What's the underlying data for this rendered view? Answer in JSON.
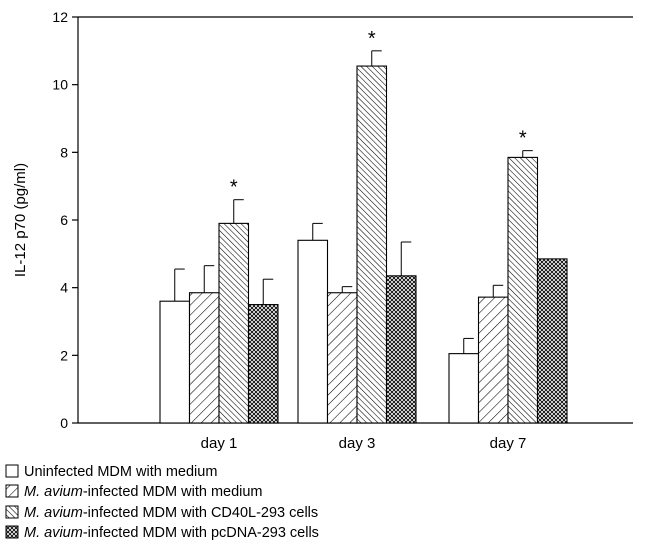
{
  "chart_data": {
    "type": "bar",
    "ylabel": "IL-12 p70 (pg/ml)",
    "ylim": [
      0,
      12
    ],
    "yticks": [
      0,
      2,
      4,
      6,
      8,
      10,
      12
    ],
    "categories": [
      "day 1",
      "day 3",
      "day 7"
    ],
    "series": [
      {
        "name": "Uninfected MDM with medium",
        "name_italic": "",
        "name_rest": "Uninfected MDM with medium",
        "pattern": "open",
        "values": [
          3.6,
          5.4,
          2.05
        ],
        "errors": [
          0.95,
          0.5,
          0.45
        ]
      },
      {
        "name": "M. avium-infected MDM with medium",
        "name_italic": "M. avium",
        "name_rest": "-infected MDM with medium",
        "pattern": "sparse-diagonal",
        "values": [
          3.85,
          3.85,
          3.72
        ],
        "errors": [
          0.8,
          0.18,
          0.35
        ]
      },
      {
        "name": "M. avium-infected MDM with CD40L-293 cells",
        "name_italic": "M. avium",
        "name_rest": "-infected MDM with CD40L-293 cells",
        "pattern": "dense-diagonal",
        "values": [
          5.9,
          10.55,
          7.85
        ],
        "errors": [
          0.7,
          0.45,
          0.2
        ]
      },
      {
        "name": "M. avium-infected MDM with pcDNA-293 cells",
        "name_italic": "M. avium",
        "name_rest": "-infected MDM with pcDNA-293 cells",
        "pattern": "crosshatch",
        "values": [
          3.5,
          4.35,
          4.85
        ],
        "errors": [
          0.75,
          1.0,
          0
        ]
      }
    ],
    "annotations": [
      {
        "text": "*",
        "category": "day 1",
        "series_index": 2
      },
      {
        "text": "*",
        "category": "day 3",
        "series_index": 2
      },
      {
        "text": "*",
        "category": "day 7",
        "series_index": 2
      }
    ],
    "grid": false,
    "legend_position": "bottom"
  }
}
